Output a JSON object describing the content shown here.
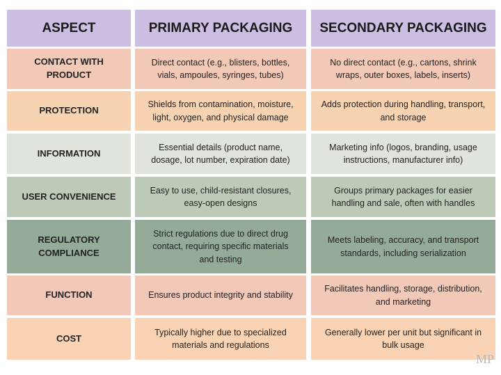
{
  "table": {
    "header": [
      "ASPECT",
      "PRIMARY PACKAGING",
      "SECONDARY PACKAGING"
    ],
    "rows": [
      [
        "CONTACT WITH PRODUCT",
        "Direct contact (e.g., blisters, bottles, vials, ampoules, syringes, tubes)",
        "No direct contact (e.g., cartons, shrink wraps, outer boxes, labels, inserts)"
      ],
      [
        "PROTECTION",
        "Shields from contamination, moisture, light, oxygen, and physical damage",
        "Adds protection during handling, transport, and storage"
      ],
      [
        "INFORMATION",
        "Essential details (product name, dosage, lot number, expiration date)",
        "Marketing info (logos, branding, usage instructions, manufacturer info)"
      ],
      [
        "USER CONVENIENCE",
        "Easy to use, child-resistant closures, easy-open designs",
        "Groups primary packages for easier handling and sale, often with handles"
      ],
      [
        "REGULATORY COMPLIANCE",
        "Strict regulations due to direct drug contact, requiring specific materials and testing",
        "Meets labeling, accuracy, and transport standards, including serialization"
      ],
      [
        "FUNCTION",
        "Ensures product integrity and stability",
        "Facilitates handling, storage, distribution, and marketing"
      ],
      [
        "COST",
        "Typically higher due to specialized materials and regulations",
        "Generally lower per unit but significant in bulk usage"
      ]
    ]
  },
  "logo": "MP"
}
